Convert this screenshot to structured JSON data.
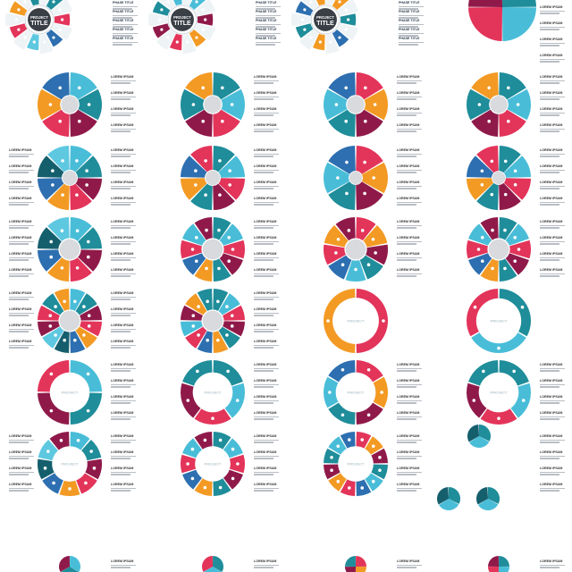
{
  "texts": {
    "lorem": "LOREM IPSUM",
    "phase": "PHASE TITLE",
    "project": "PROJECT",
    "title": "TITLE"
  },
  "colors": {
    "teal": "#1f8d9a",
    "cyan": "#49bdd8",
    "lightblue": "#5ec8e0",
    "maroon": "#8f1a4a",
    "red": "#e3345a",
    "orange": "#f39a24",
    "blue": "#2d6fb0",
    "darkteal": "#155f6d",
    "gray": "#d8dadd",
    "light": "#eef3f6"
  },
  "icons": [
    "house-icon",
    "lightbulb-icon",
    "person-icon",
    "gear-icon",
    "target-icon",
    "chart-icon",
    "hand-icon",
    "money-icon",
    "leaf-icon",
    "briefcase-icon"
  ]
}
